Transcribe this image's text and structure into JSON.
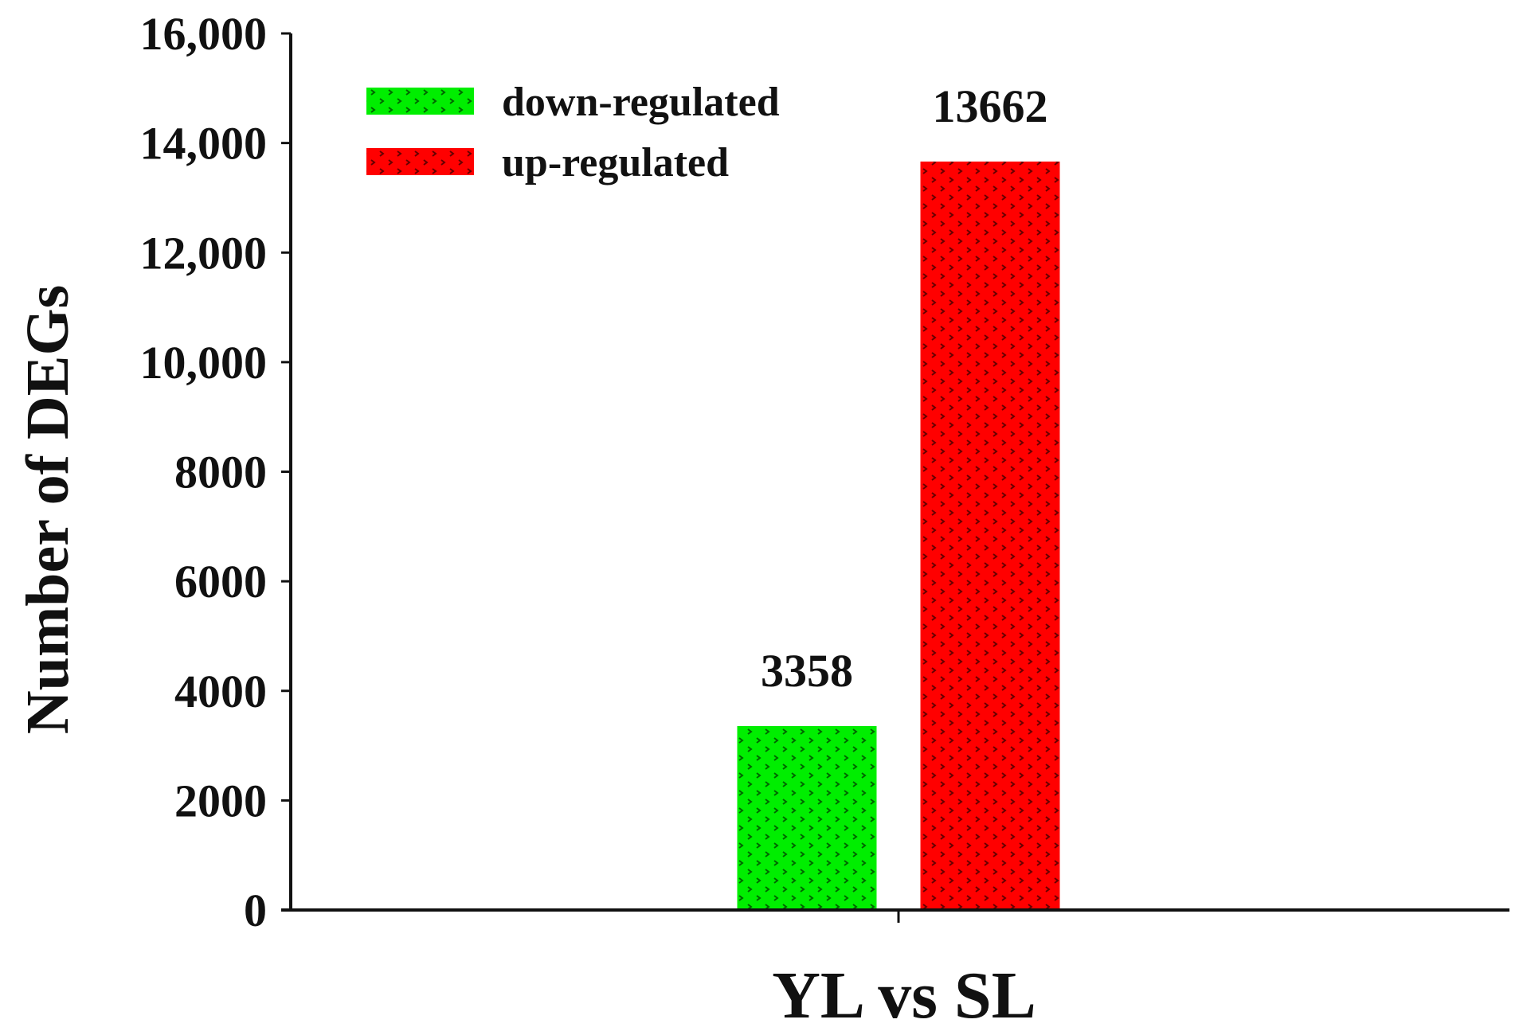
{
  "chart_data": {
    "type": "bar",
    "categories": [
      "YL vs SL"
    ],
    "series": [
      {
        "name": "down-regulated",
        "values": [
          3358
        ],
        "color": "#00ee00"
      },
      {
        "name": "up-regulated",
        "values": [
          13662
        ],
        "color": "#ff0000"
      }
    ],
    "data_labels": [
      "3358",
      "13662"
    ],
    "ylabel": "Number of DEGs",
    "xlabel": "YL vs SL",
    "ylim": [
      0,
      16000
    ],
    "yticks": [
      0,
      2000,
      4000,
      6000,
      8000,
      10000,
      12000,
      14000,
      16000
    ],
    "ytick_labels": [
      "0",
      "2000",
      "4000",
      "6000",
      "8000",
      "10,000",
      "12,000",
      "14,000",
      "16,000"
    ],
    "legend_position": "top-left",
    "grid": false
  }
}
